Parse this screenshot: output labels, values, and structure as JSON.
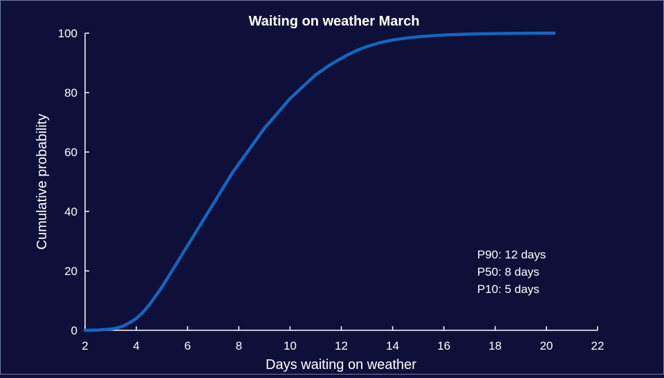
{
  "chart_data": {
    "type": "line",
    "title": "Waiting on weather March",
    "xlabel": "Days waiting on weather",
    "ylabel": "Cumulative probability",
    "xlim": [
      2,
      22
    ],
    "ylim": [
      0,
      100
    ],
    "xticks": [
      2,
      4,
      6,
      8,
      10,
      12,
      14,
      16,
      18,
      20,
      22
    ],
    "yticks": [
      0,
      20,
      40,
      60,
      80,
      100
    ],
    "grid": false,
    "series": [
      {
        "color": "#1565c0",
        "x": [
          2.0,
          2.5,
          3.0,
          3.25,
          3.5,
          3.75,
          4.0,
          4.25,
          4.5,
          4.75,
          5.0,
          5.25,
          5.5,
          5.75,
          6.0,
          6.25,
          6.5,
          6.75,
          7.0,
          7.25,
          7.5,
          7.75,
          8.0,
          8.25,
          8.5,
          8.75,
          9.0,
          9.25,
          9.5,
          9.75,
          10.0,
          10.25,
          10.5,
          10.75,
          11.0,
          11.25,
          11.5,
          11.75,
          12.0,
          12.25,
          12.5,
          12.75,
          13.0,
          13.5,
          14.0,
          14.5,
          15.0,
          15.5,
          16.0,
          17.0,
          18.0,
          19.0,
          20.3
        ],
        "y": [
          0.0,
          0.1,
          0.4,
          0.8,
          1.5,
          2.6,
          4.0,
          6.0,
          8.5,
          11.5,
          14.5,
          18.0,
          21.5,
          25.0,
          28.5,
          32.0,
          35.5,
          39.0,
          42.5,
          46.0,
          49.5,
          53.0,
          56.0,
          59.0,
          62.0,
          65.0,
          68.0,
          70.5,
          73.0,
          75.5,
          78.0,
          80.0,
          82.0,
          84.0,
          86.0,
          87.5,
          89.0,
          90.3,
          91.5,
          92.7,
          93.8,
          94.7,
          95.5,
          96.8,
          97.7,
          98.3,
          98.8,
          99.1,
          99.4,
          99.7,
          99.85,
          99.95,
          100.0
        ]
      }
    ]
  },
  "annotations": [
    "P90: 12 days",
    "P50: 8 days",
    "P10: 5 days"
  ]
}
